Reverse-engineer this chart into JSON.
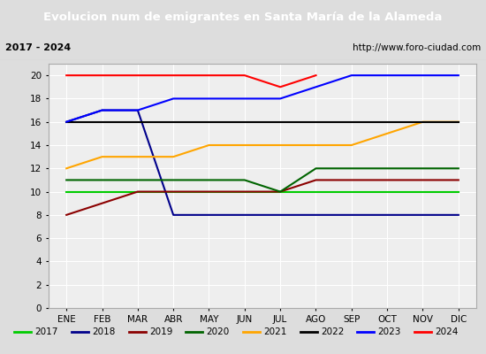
{
  "title": "Evolucion num de emigrantes en Santa María de la Alameda",
  "subtitle_left": "2017 - 2024",
  "subtitle_right": "http://www.foro-ciudad.com",
  "ylim": [
    0,
    21
  ],
  "yticks": [
    0,
    2,
    4,
    6,
    8,
    10,
    12,
    14,
    16,
    18,
    20
  ],
  "months": [
    "ENE",
    "FEB",
    "MAR",
    "ABR",
    "MAY",
    "JUN",
    "JUL",
    "AGO",
    "SEP",
    "OCT",
    "NOV",
    "DIC"
  ],
  "month_x": [
    1,
    2,
    3,
    4,
    5,
    6,
    7,
    8,
    9,
    10,
    11,
    12
  ],
  "series": {
    "2017": {
      "color": "#00cc00",
      "lw": 1.5,
      "data": [
        10,
        10,
        10,
        10,
        10,
        10,
        10,
        10,
        10,
        10,
        10,
        10
      ]
    },
    "2018": {
      "color": "#00008b",
      "lw": 1.5,
      "data": [
        16,
        17,
        17,
        8,
        8,
        8,
        8,
        8,
        8,
        8,
        8,
        8
      ]
    },
    "2019": {
      "color": "#8b0000",
      "lw": 1.5,
      "data": [
        8,
        9,
        10,
        10,
        10,
        10,
        10,
        11,
        11,
        11,
        11,
        11
      ]
    },
    "2020": {
      "color": "#006400",
      "lw": 1.5,
      "data": [
        11,
        11,
        11,
        11,
        11,
        11,
        10,
        12,
        12,
        12,
        12,
        12
      ]
    },
    "2021": {
      "color": "#ffa500",
      "lw": 1.5,
      "data": [
        12,
        13,
        13,
        13,
        14,
        14,
        14,
        14,
        14,
        15,
        16,
        16
      ]
    },
    "2022": {
      "color": "#000000",
      "lw": 1.5,
      "data": [
        16,
        16,
        16,
        16,
        16,
        16,
        16,
        16,
        16,
        16,
        16,
        16
      ]
    },
    "2023": {
      "color": "#0000ff",
      "lw": 1.5,
      "data": [
        16,
        17,
        17,
        18,
        18,
        18,
        18,
        19,
        20,
        20,
        20,
        20
      ]
    },
    "2024": {
      "color": "#ff0000",
      "lw": 1.5,
      "data": [
        20,
        20,
        20,
        20,
        20,
        20,
        19,
        20,
        null,
        null,
        null,
        null
      ]
    }
  },
  "title_bg_color": "#3366cc",
  "title_text_color": "#ffffff",
  "plot_bg_color": "#eeeeee",
  "grid_color": "#ffffff",
  "outer_bg_color": "#dddddd",
  "subtitle_bg_color": "#dddddd",
  "legend_bg_color": "#ffffff",
  "legend_border_color": "#3366cc",
  "fig_bg_color": "#dddddd"
}
